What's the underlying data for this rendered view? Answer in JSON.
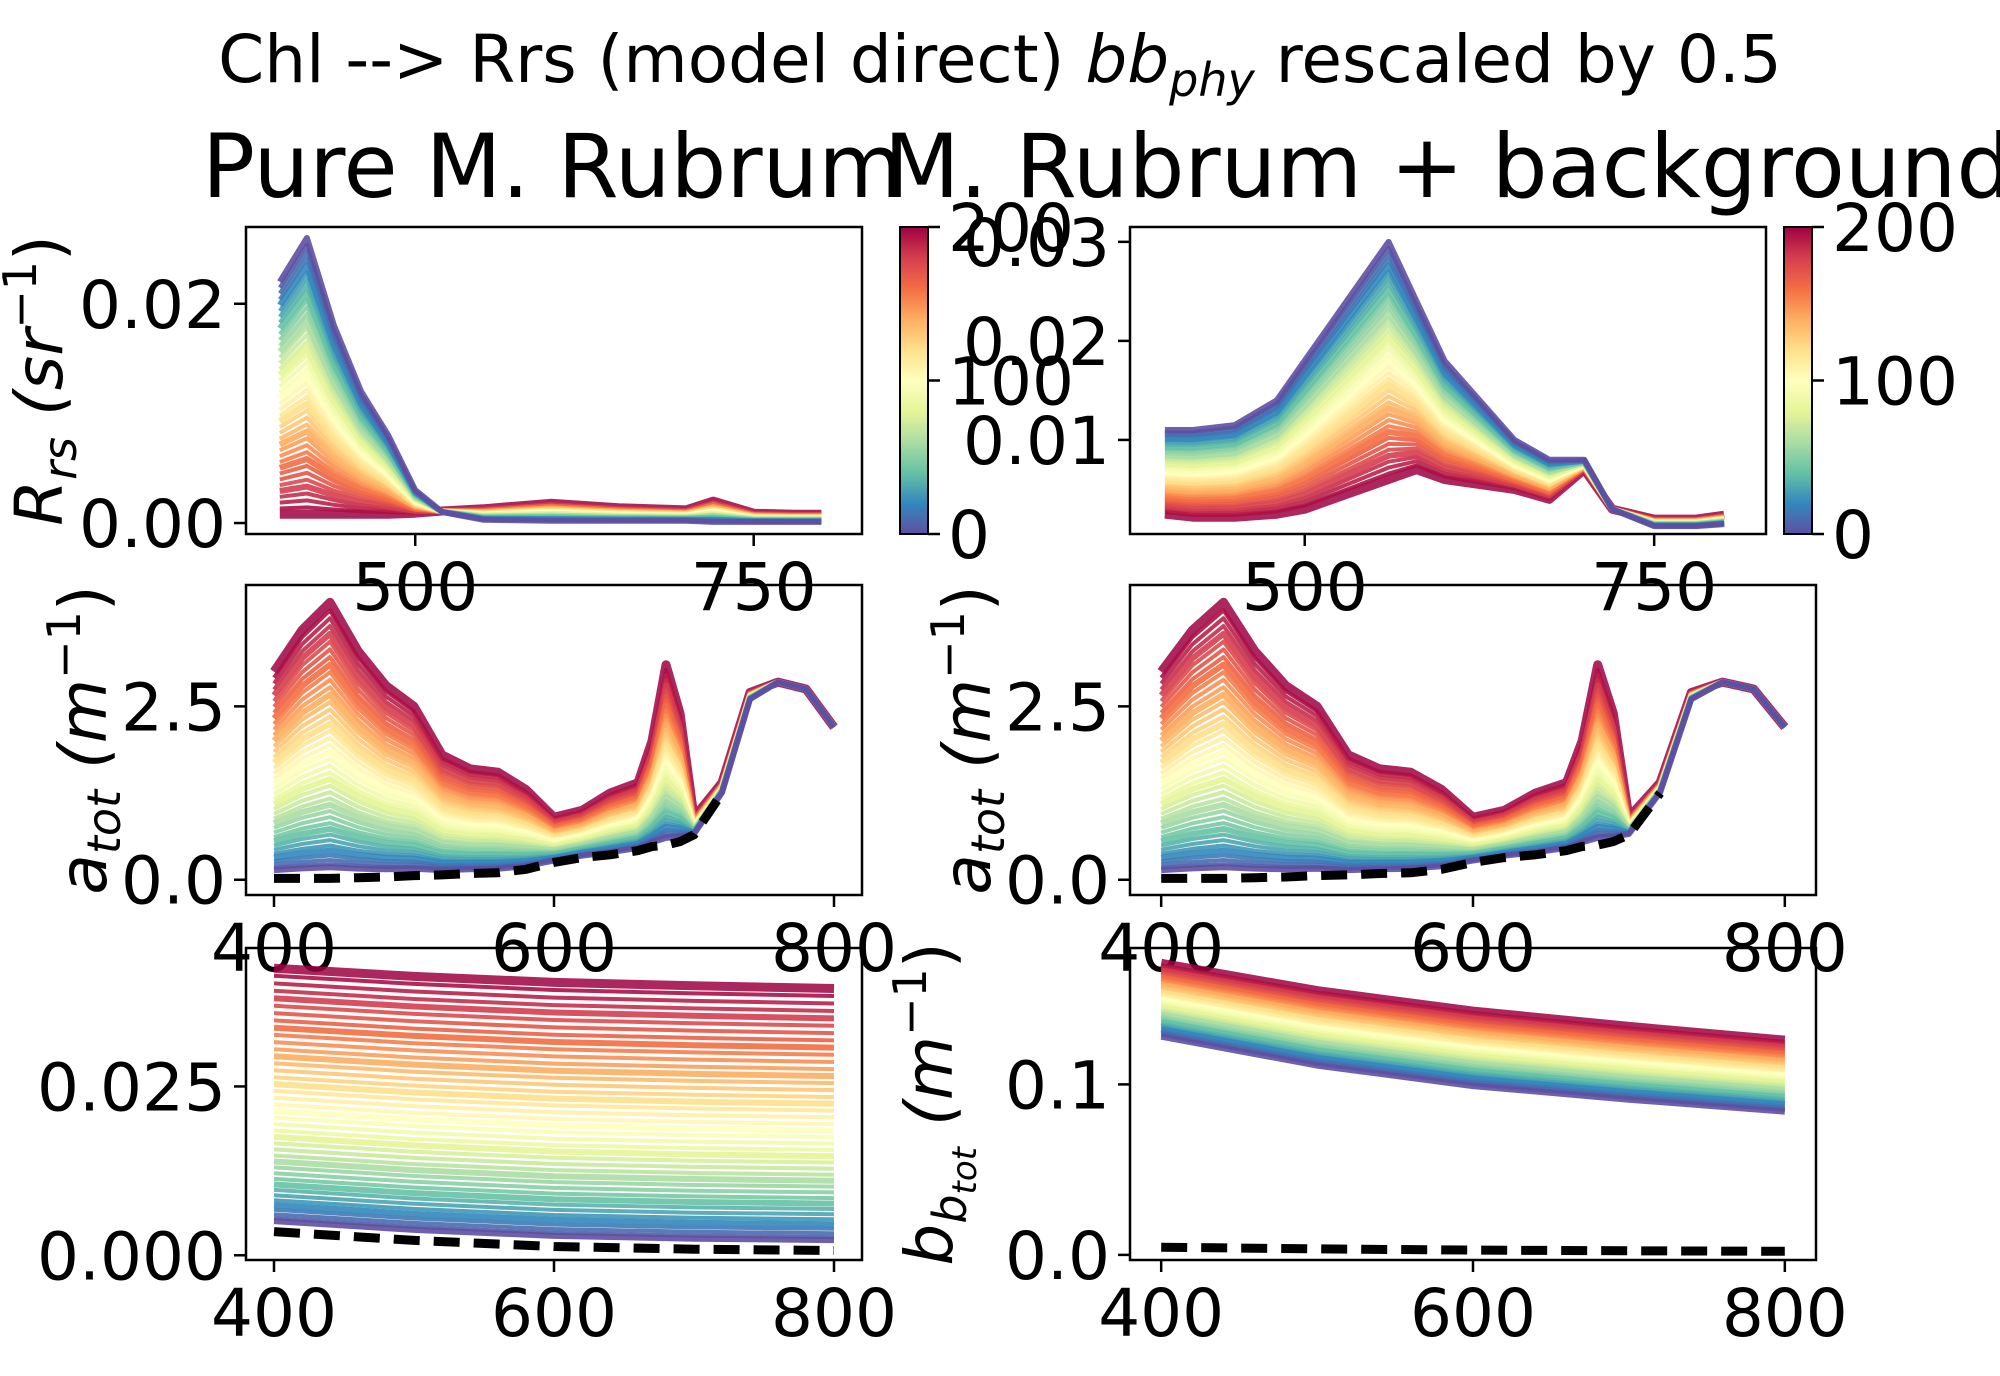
{
  "figure": {
    "suptitle_prefix": "Chl --> Rrs (model direct) ",
    "suptitle_var": "bb",
    "suptitle_sub": "phy",
    "suptitle_suffix": " rescaled by 0.5",
    "left_title": "Pure M. Rubrum",
    "right_title": "M. Rubrum + background"
  },
  "colorbar": {
    "ticks": [
      "0",
      "100",
      "200"
    ],
    "range": [
      0,
      200
    ]
  },
  "colors": {
    "cmap": [
      "#5e4fa2",
      "#3288bd",
      "#66c2a5",
      "#abdda4",
      "#e6f598",
      "#ffffbf",
      "#fee08b",
      "#fdae61",
      "#f46d43",
      "#d53e4f",
      "#9e0142"
    ],
    "background_line": "#000000"
  },
  "chart_data": [
    {
      "panel": "pure-rrs",
      "type": "line",
      "ylabel_main": "R",
      "ylabel_sub": "rs",
      "ylabel_unit": " (sr",
      "ylabel_exp": "−1",
      "ylabel_close": ")",
      "xticks": [
        "500",
        "750"
      ],
      "xtick_values": [
        500,
        750
      ],
      "yticks": [
        "0.00",
        "0.02"
      ],
      "ytick_values": [
        0,
        0.02
      ],
      "xlim": [
        375,
        830
      ],
      "ylim": [
        -0.001,
        0.027
      ],
      "curve_shape": "blue-peak-at-420-decreasing-with-chl",
      "x": [
        400,
        420,
        440,
        460,
        480,
        500,
        520,
        550,
        600,
        650,
        700,
        720,
        750,
        780,
        800
      ],
      "series": [
        {
          "name": "Chl 0",
          "y": [
            0.022,
            0.026,
            0.018,
            0.012,
            0.008,
            0.003,
            0.001,
            0.0003,
            0.0002,
            0.0002,
            0.0002,
            0.0001,
            0.0001,
            0.0001,
            0.0001
          ]
        },
        {
          "name": "Chl 200",
          "y": [
            0.0008,
            0.0008,
            0.0008,
            0.0008,
            0.0008,
            0.0009,
            0.0011,
            0.0013,
            0.0018,
            0.0014,
            0.0012,
            0.002,
            0.0009,
            0.0008,
            0.0008
          ]
        }
      ]
    },
    {
      "panel": "bg-rrs",
      "type": "line",
      "ylabel_main": "",
      "ylabel_sub": "",
      "ylabel_unit": "",
      "ylabel_exp": "",
      "ylabel_close": "",
      "xticks": [
        "500",
        "750"
      ],
      "xtick_values": [
        500,
        750
      ],
      "yticks": [
        "0.01",
        "0.02",
        "0.03"
      ],
      "ytick_values": [
        0.01,
        0.02,
        0.03
      ],
      "xlim": [
        375,
        830
      ],
      "ylim": [
        0.0005,
        0.0315
      ],
      "curve_shape": "green-peak-at-560-decreasing-with-chl",
      "x": [
        400,
        420,
        450,
        480,
        500,
        520,
        540,
        560,
        580,
        600,
        650,
        675,
        700,
        720,
        750,
        780,
        800
      ],
      "series": [
        {
          "name": "Chl 0",
          "y": [
            0.011,
            0.011,
            0.0115,
            0.014,
            0.018,
            0.022,
            0.026,
            0.03,
            0.024,
            0.018,
            0.01,
            0.008,
            0.008,
            0.003,
            0.0013,
            0.0013,
            0.0015
          ]
        },
        {
          "name": "Chl 200",
          "y": [
            0.0025,
            0.0022,
            0.0022,
            0.0025,
            0.003,
            0.004,
            0.005,
            0.006,
            0.007,
            0.006,
            0.005,
            0.004,
            0.007,
            0.003,
            0.002,
            0.002,
            0.0024
          ]
        }
      ]
    },
    {
      "panel": "pure-atot",
      "type": "line",
      "ylabel_main": "a",
      "ylabel_sub": "tot",
      "ylabel_unit": " (m",
      "ylabel_exp": "−1",
      "ylabel_close": ")",
      "xticks": [
        "400",
        "600",
        "800"
      ],
      "xtick_values": [
        400,
        600,
        800
      ],
      "yticks": [
        "0.0",
        "2.5"
      ],
      "ytick_values": [
        0,
        2.5
      ],
      "xlim": [
        380,
        820
      ],
      "ylim": [
        -0.22,
        4.25
      ],
      "curve_shape": "phyto-absorption-scaled-by-chl",
      "x": [
        400,
        420,
        440,
        460,
        480,
        500,
        520,
        540,
        560,
        580,
        600,
        620,
        640,
        660,
        670,
        680,
        690,
        700,
        720,
        740,
        760,
        780,
        800
      ],
      "series": [
        {
          "name": "Chl 200",
          "y": [
            3.0,
            3.6,
            4.0,
            3.3,
            2.8,
            2.5,
            1.8,
            1.6,
            1.55,
            1.3,
            0.9,
            1.0,
            1.25,
            1.4,
            2.0,
            3.1,
            2.4,
            0.9,
            1.4,
            2.7,
            2.85,
            2.75,
            2.2
          ]
        },
        {
          "name": "background",
          "y": [
            0.02,
            0.02,
            0.02,
            0.03,
            0.04,
            0.06,
            0.07,
            0.09,
            0.1,
            0.15,
            0.25,
            0.32,
            0.36,
            0.42,
            0.48,
            0.5,
            0.55,
            0.65,
            1.25,
            2.6,
            2.85,
            2.75,
            2.2
          ]
        }
      ]
    },
    {
      "panel": "bg-atot",
      "type": "line",
      "ylabel_main": "a",
      "ylabel_sub": "tot",
      "ylabel_unit": " (m",
      "ylabel_exp": "−1",
      "ylabel_close": ")",
      "xticks": [
        "400",
        "600",
        "800"
      ],
      "xtick_values": [
        400,
        600,
        800
      ],
      "yticks": [
        "0.0",
        "2.5"
      ],
      "ytick_values": [
        0,
        2.5
      ],
      "xlim": [
        380,
        820
      ],
      "ylim": [
        -0.22,
        4.25
      ],
      "curve_shape": "phyto-absorption-scaled-by-chl",
      "x": [
        400,
        420,
        440,
        460,
        480,
        500,
        520,
        540,
        560,
        580,
        600,
        620,
        640,
        660,
        670,
        680,
        690,
        700,
        720,
        740,
        760,
        780,
        800
      ],
      "series": [
        {
          "name": "Chl 200",
          "y": [
            3.0,
            3.6,
            4.0,
            3.3,
            2.8,
            2.5,
            1.8,
            1.6,
            1.55,
            1.3,
            0.9,
            1.0,
            1.25,
            1.4,
            2.0,
            3.1,
            2.4,
            0.9,
            1.4,
            2.7,
            2.85,
            2.75,
            2.2
          ]
        },
        {
          "name": "background",
          "y": [
            0.02,
            0.02,
            0.02,
            0.03,
            0.04,
            0.06,
            0.07,
            0.09,
            0.1,
            0.15,
            0.25,
            0.32,
            0.36,
            0.42,
            0.48,
            0.5,
            0.55,
            0.65,
            1.25,
            2.6,
            2.85,
            2.75,
            2.2
          ]
        }
      ]
    },
    {
      "panel": "pure-bbtot",
      "type": "line",
      "ylabel_main": "b",
      "ylabel_sub": "b",
      "ylabel_subsub": "tot",
      "ylabel_unit": " (m",
      "ylabel_exp": "−1",
      "ylabel_close": ")",
      "xticks": [
        "400",
        "600",
        "800"
      ],
      "xtick_values": [
        400,
        600,
        800
      ],
      "yticks": [
        "0.000",
        "0.025"
      ],
      "ytick_values": [
        0,
        0.025
      ],
      "xlim": [
        380,
        820
      ],
      "ylim": [
        -0.0007,
        0.0455
      ],
      "curve_shape": "power-law-scattering",
      "x": [
        400,
        500,
        600,
        700,
        800
      ],
      "series": [
        {
          "name": "Chl 200",
          "y": [
            0.0425,
            0.0413,
            0.0404,
            0.0399,
            0.0395
          ]
        },
        {
          "name": "background",
          "y": [
            0.0035,
            0.0022,
            0.0013,
            0.0009,
            0.0007
          ]
        }
      ]
    },
    {
      "panel": "bg-bbtot",
      "type": "line",
      "ylabel_main": "",
      "ylabel_sub": "",
      "ylabel_unit": "",
      "ylabel_exp": "",
      "ylabel_close": "",
      "xticks": [
        "400",
        "600",
        "800"
      ],
      "xtick_values": [
        400,
        600,
        800
      ],
      "yticks": [
        "0.0",
        "0.1"
      ],
      "ytick_values": [
        0,
        0.1
      ],
      "xlim": [
        380,
        820
      ],
      "ylim": [
        -0.003,
        0.18
      ],
      "curve_shape": "power-law-scattering",
      "x": [
        400,
        500,
        600,
        700,
        800
      ],
      "series": [
        {
          "name": "Chl 200",
          "y": [
            0.171,
            0.155,
            0.143,
            0.134,
            0.126
          ]
        },
        {
          "name": "Chl 0",
          "y": [
            0.128,
            0.111,
            0.099,
            0.091,
            0.084
          ]
        },
        {
          "name": "background",
          "y": [
            0.0045,
            0.0035,
            0.0028,
            0.0024,
            0.0021
          ]
        }
      ]
    }
  ]
}
